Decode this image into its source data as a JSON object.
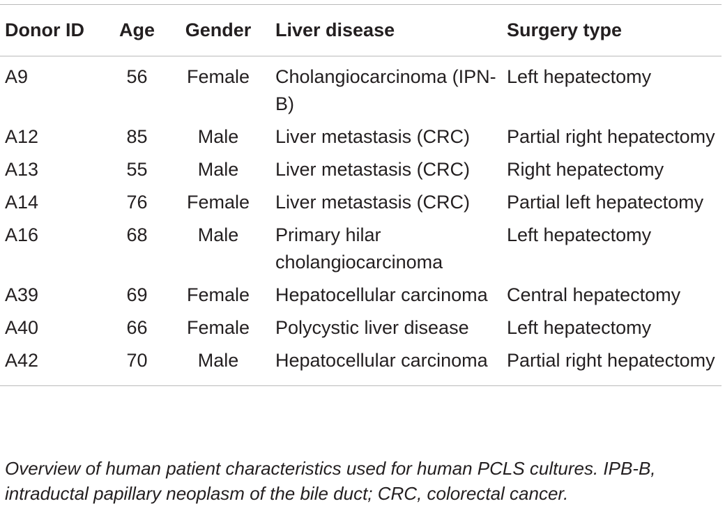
{
  "table": {
    "headers": {
      "donor_id": "Donor ID",
      "age": "Age",
      "gender": "Gender",
      "liver_disease": "Liver disease",
      "surgery_type": "Surgery type"
    },
    "rows": [
      {
        "donor_id": "A9",
        "age": "56",
        "gender": "Female",
        "liver_disease": "Cholangiocarcinoma (IPN-B)",
        "surgery_type": "Left hepatectomy"
      },
      {
        "donor_id": "A12",
        "age": "85",
        "gender": "Male",
        "liver_disease": "Liver metastasis (CRC)",
        "surgery_type": "Partial right hepatectomy"
      },
      {
        "donor_id": "A13",
        "age": "55",
        "gender": "Male",
        "liver_disease": "Liver metastasis (CRC)",
        "surgery_type": "Right hepatectomy"
      },
      {
        "donor_id": "A14",
        "age": "76",
        "gender": "Female",
        "liver_disease": "Liver metastasis (CRC)",
        "surgery_type": "Partial left hepatectomy"
      },
      {
        "donor_id": "A16",
        "age": "68",
        "gender": "Male",
        "liver_disease": "Primary hilar cholangiocarcinoma",
        "surgery_type": "Left hepatectomy"
      },
      {
        "donor_id": "A39",
        "age": "69",
        "gender": "Female",
        "liver_disease": "Hepatocellular carcinoma",
        "surgery_type": "Central hepatectomy"
      },
      {
        "donor_id": "A40",
        "age": "66",
        "gender": "Female",
        "liver_disease": "Polycystic liver disease",
        "surgery_type": "Left hepatectomy"
      },
      {
        "donor_id": "A42",
        "age": "70",
        "gender": "Male",
        "liver_disease": "Hepatocellular carcinoma",
        "surgery_type": "Partial right hepatectomy"
      }
    ]
  },
  "caption": "Overview of human patient characteristics used for human PCLS cultures. IPB-B, intraductal papillary neoplasm of the bile duct; CRC, colorectal cancer."
}
